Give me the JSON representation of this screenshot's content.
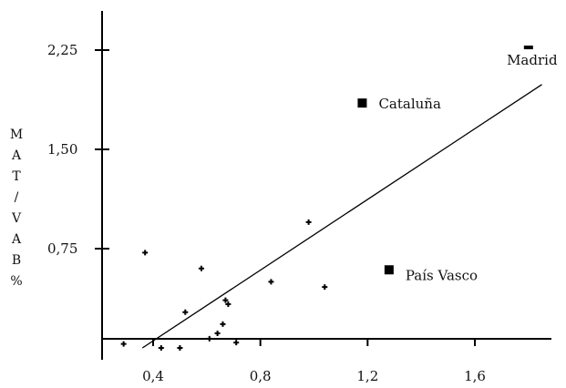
{
  "chart_data": {
    "type": "scatter",
    "title": "",
    "xlabel": "",
    "ylabel": "MAT/VAB %",
    "ylabel_letters": [
      "M",
      "A",
      "T",
      "/",
      "V",
      "A",
      "B",
      "%"
    ],
    "xlim": [
      0.25,
      1.85
    ],
    "ylim": [
      -0.05,
      2.45
    ],
    "x_ticks": [
      0.4,
      0.8,
      1.2,
      1.6
    ],
    "x_tick_labels": [
      "0,4",
      "0,8",
      "1,2",
      "1,6"
    ],
    "y_ticks": [
      0.75,
      1.5,
      2.25
    ],
    "y_tick_labels": [
      "0,75",
      "1,50",
      "2,25"
    ],
    "grid": false,
    "legend": "none",
    "series": [
      {
        "marker": "cross",
        "points": [
          {
            "x": 0.29,
            "y": 0.03
          },
          {
            "x": 0.37,
            "y": 0.72
          },
          {
            "x": 0.43,
            "y": 0.0
          },
          {
            "x": 0.5,
            "y": 0.0
          },
          {
            "x": 0.52,
            "y": 0.27
          },
          {
            "x": 0.58,
            "y": 0.6
          },
          {
            "x": 0.61,
            "y": 0.07
          },
          {
            "x": 0.64,
            "y": 0.11
          },
          {
            "x": 0.66,
            "y": 0.18
          },
          {
            "x": 0.67,
            "y": 0.36
          },
          {
            "x": 0.68,
            "y": 0.33
          },
          {
            "x": 0.71,
            "y": 0.04
          },
          {
            "x": 0.84,
            "y": 0.5
          },
          {
            "x": 0.98,
            "y": 0.95
          },
          {
            "x": 1.04,
            "y": 0.46
          }
        ]
      },
      {
        "marker": "square",
        "points": [
          {
            "x": 1.18,
            "y": 1.85,
            "label": "Cataluña"
          },
          {
            "x": 1.28,
            "y": 0.59,
            "label": "País Vasco"
          },
          {
            "x": 1.8,
            "y": 2.27,
            "label": "Madrid"
          }
        ]
      }
    ],
    "trendline": {
      "x": [
        0.36,
        1.85
      ],
      "y": [
        0.0,
        1.99
      ]
    },
    "colors": {
      "marks": "#000000",
      "background": "#ffffff"
    }
  }
}
